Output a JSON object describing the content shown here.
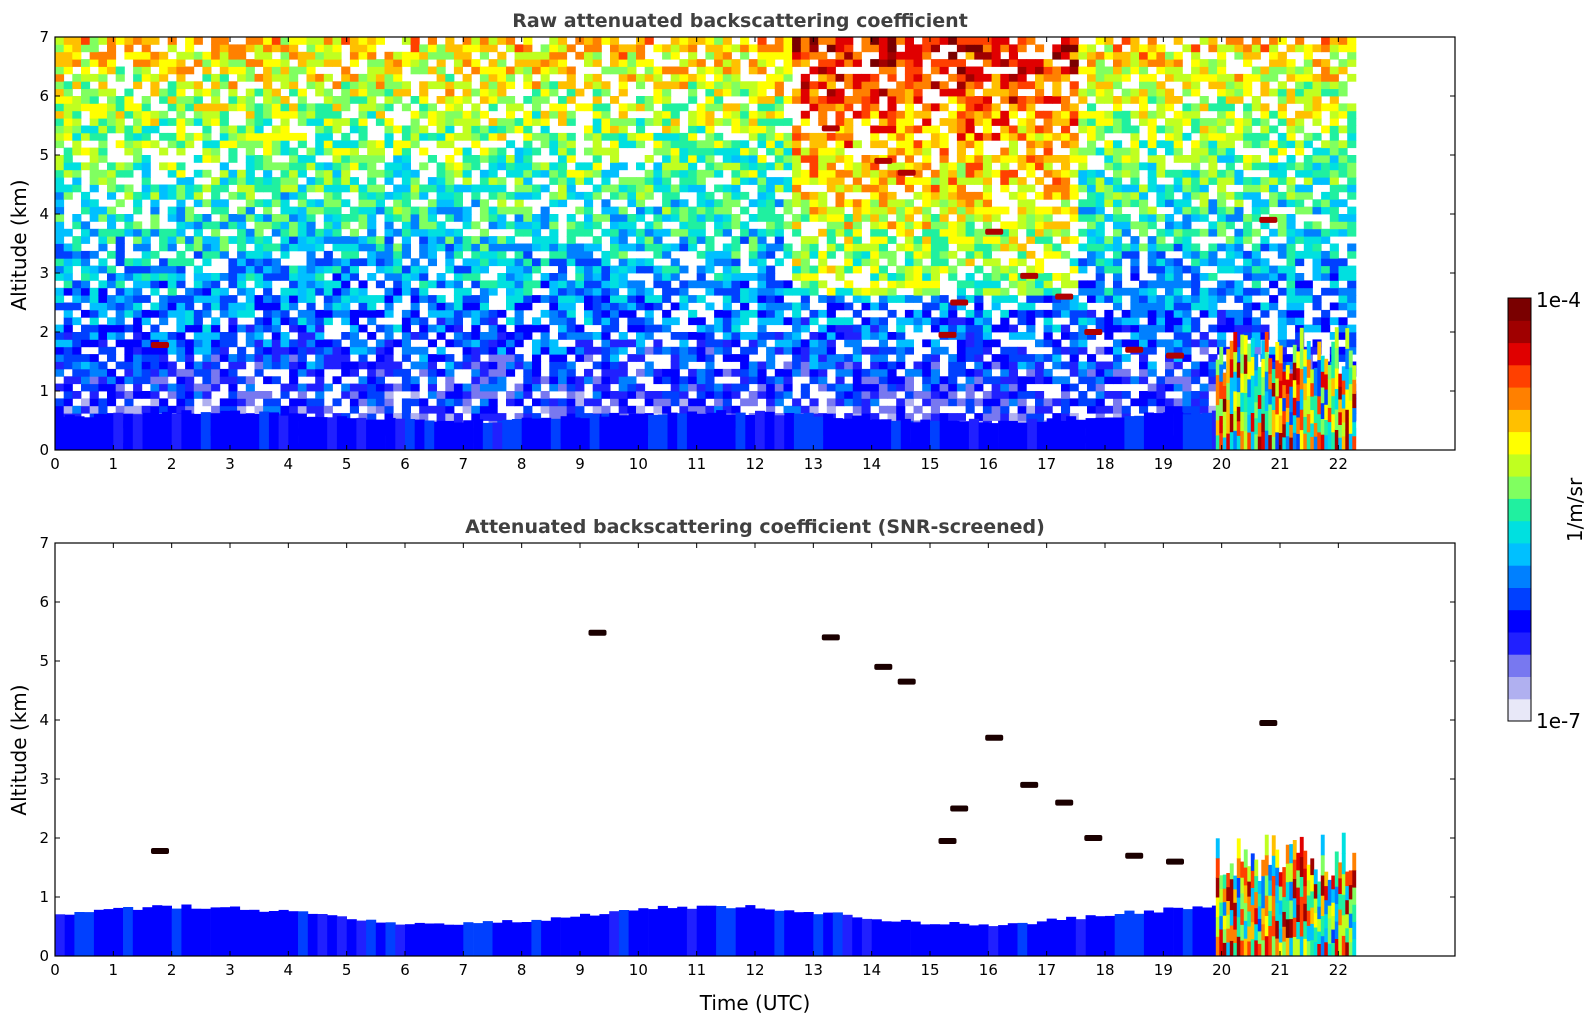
{
  "chart_data": [
    {
      "type": "heatmap",
      "title": "Raw attenuated backscattering coefficient",
      "xlabel": "",
      "ylabel": "Altitude (km)",
      "xlim": [
        0,
        24
      ],
      "ylim": [
        0,
        7
      ],
      "xticks": [
        "0",
        "1",
        "2",
        "3",
        "4",
        "5",
        "6",
        "7",
        "8",
        "9",
        "10",
        "11",
        "12",
        "13",
        "14",
        "15",
        "16",
        "17",
        "18",
        "19",
        "20",
        "21",
        "22"
      ],
      "yticks": [
        "0",
        "1",
        "2",
        "3",
        "4",
        "5",
        "6",
        "7"
      ],
      "data_extent_hours": [
        0,
        22.3
      ],
      "features": [
        {
          "kind": "boundary_layer",
          "x_range": [
            0,
            20
          ],
          "altitude_top_km": [
            0.45,
            0.6
          ],
          "level": 0.2
        },
        {
          "kind": "noise_gradient",
          "note": "log-scaled noise increasing with altitude"
        },
        {
          "kind": "cloud_layers",
          "points": [
            [
              1.8,
              1.78
            ],
            [
              13.3,
              5.45
            ],
            [
              14.2,
              4.9
            ],
            [
              14.6,
              4.7
            ],
            [
              15.3,
              1.95
            ],
            [
              15.5,
              2.5
            ],
            [
              16.1,
              3.7
            ],
            [
              16.7,
              2.95
            ],
            [
              17.3,
              2.6
            ],
            [
              17.8,
              2.0
            ],
            [
              18.5,
              1.7
            ],
            [
              19.2,
              1.6
            ],
            [
              20.8,
              3.9
            ]
          ]
        },
        {
          "kind": "precipitation_region",
          "x_range": [
            19.9,
            22.3
          ],
          "altitude_top_km": 2.1
        }
      ]
    },
    {
      "type": "heatmap",
      "title": "Attenuated backscattering coefficient (SNR-screened)",
      "xlabel": "Time (UTC)",
      "ylabel": "Altitude (km)",
      "xlim": [
        0,
        24
      ],
      "ylim": [
        0,
        7
      ],
      "xticks": [
        "0",
        "1",
        "2",
        "3",
        "4",
        "5",
        "6",
        "7",
        "8",
        "9",
        "10",
        "11",
        "12",
        "13",
        "14",
        "15",
        "16",
        "17",
        "18",
        "19",
        "20",
        "21",
        "22"
      ],
      "yticks": [
        "0",
        "1",
        "2",
        "3",
        "4",
        "5",
        "6",
        "7"
      ],
      "data_extent_hours": [
        0,
        22.3
      ],
      "features": [
        {
          "kind": "boundary_layer",
          "x_range": [
            0,
            20
          ],
          "altitude_top_km": [
            0.5,
            0.8
          ],
          "level": 0.2
        },
        {
          "kind": "cloud_layers",
          "points": [
            [
              1.8,
              1.78
            ],
            [
              9.3,
              5.48
            ],
            [
              13.3,
              5.4
            ],
            [
              14.2,
              4.9
            ],
            [
              14.6,
              4.65
            ],
            [
              15.3,
              1.95
            ],
            [
              15.5,
              2.5
            ],
            [
              16.1,
              3.7
            ],
            [
              16.7,
              2.9
            ],
            [
              17.3,
              2.6
            ],
            [
              17.8,
              2.0
            ],
            [
              18.5,
              1.7
            ],
            [
              19.2,
              1.6
            ],
            [
              20.8,
              3.95
            ]
          ]
        },
        {
          "kind": "precipitation_region",
          "x_range": [
            19.9,
            22.3
          ],
          "altitude_top_km": 2.1
        }
      ]
    }
  ],
  "colorbar": {
    "label": "1/m/sr",
    "max_label": "1e-4",
    "min_label": "1e-7",
    "colors": [
      "#e8e8f8",
      "#b0b0f0",
      "#7878f0",
      "#2020ff",
      "#0000ff",
      "#0040ff",
      "#0080ff",
      "#00c0ff",
      "#00e0e0",
      "#20f0a0",
      "#80ff60",
      "#c0ff20",
      "#ffff00",
      "#ffc000",
      "#ff8000",
      "#ff4000",
      "#e00000",
      "#a00000",
      "#7a0000"
    ]
  }
}
